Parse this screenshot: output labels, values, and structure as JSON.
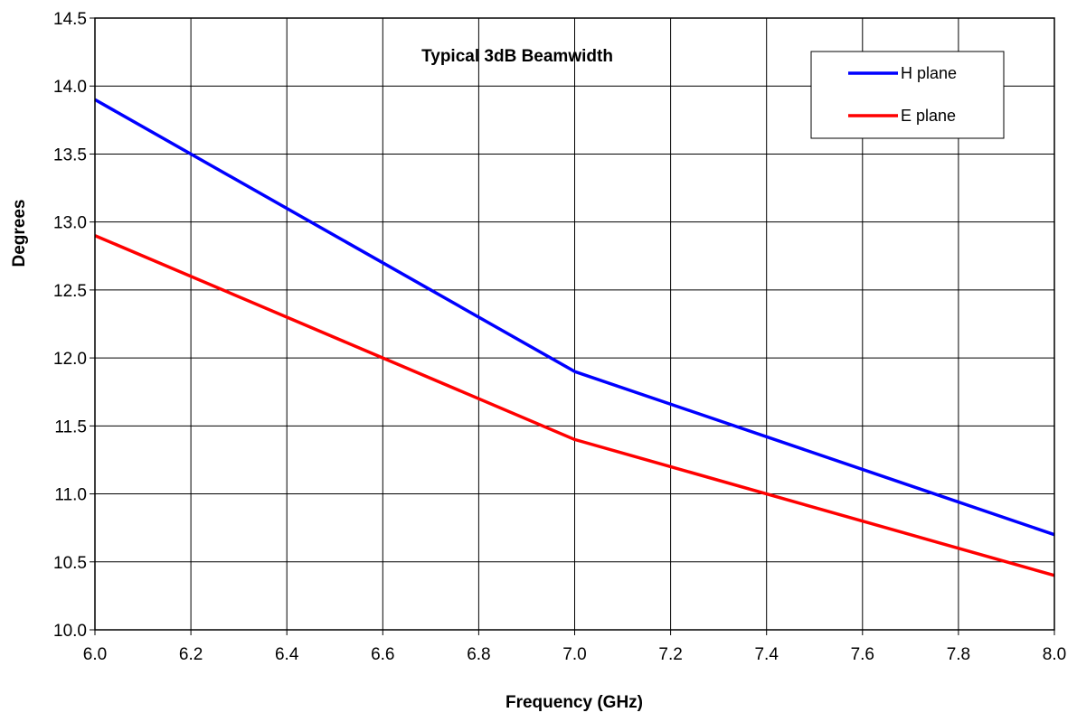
{
  "chart_data": {
    "type": "line",
    "title": "Typical 3dB Beamwidth",
    "xlabel": "Frequency (GHz)",
    "ylabel": "Degrees",
    "xlim": [
      6.0,
      8.0
    ],
    "ylim": [
      10.0,
      14.5
    ],
    "x_ticks": [
      "6.0",
      "6.2",
      "6.4",
      "6.6",
      "6.8",
      "7.0",
      "7.2",
      "7.4",
      "7.6",
      "7.8",
      "8.0"
    ],
    "y_ticks": [
      "10.0",
      "10.5",
      "11.0",
      "11.5",
      "12.0",
      "12.5",
      "13.0",
      "13.5",
      "14.0",
      "14.5"
    ],
    "grid": true,
    "legend_position": "top-right",
    "series": [
      {
        "name": "H plane",
        "color": "#0000ff",
        "points": [
          [
            6.0,
            13.9
          ],
          [
            7.0,
            11.9
          ],
          [
            8.0,
            10.7
          ]
        ]
      },
      {
        "name": "E plane",
        "color": "#ff0000",
        "points": [
          [
            6.0,
            12.9
          ],
          [
            7.0,
            11.4
          ],
          [
            8.0,
            10.4
          ]
        ]
      }
    ]
  }
}
